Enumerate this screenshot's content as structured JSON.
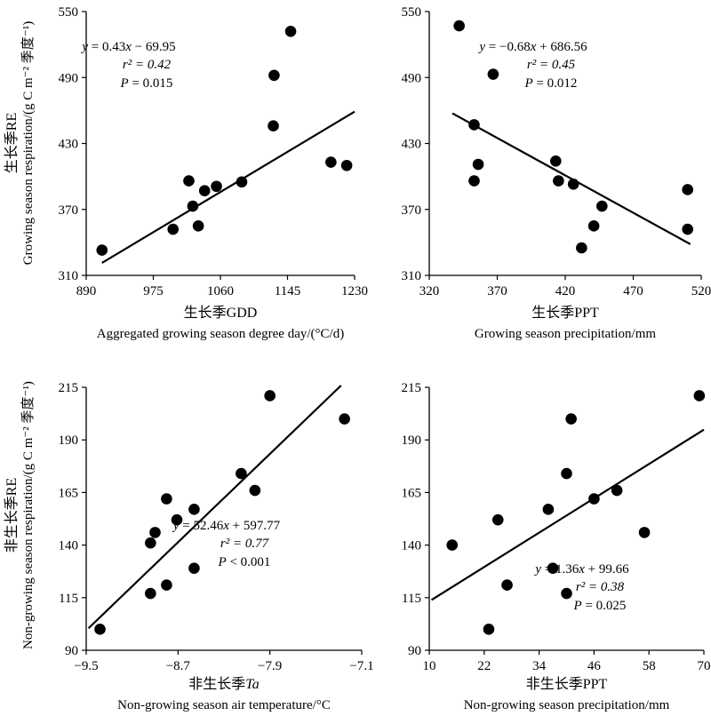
{
  "ylabels": {
    "top_cn": "生长季RE",
    "top_en": "Growing season respiration/(g C m⁻² 季度⁻¹)",
    "bottom_cn": "非生长季RE",
    "bottom_en": "Non-growing season respiration/(g C m⁻² 季度⁻¹)"
  },
  "chart_data": [
    {
      "type": "scatter",
      "xlabel_cn": "生长季GDD",
      "xlabel": "Aggregated growing season degree day/(°C/d)",
      "xlim": [
        890,
        1230
      ],
      "ylim": [
        310,
        550
      ],
      "xticks": [
        "890",
        "975",
        "1060",
        "1145",
        "1230"
      ],
      "yticks": [
        "310",
        "370",
        "430",
        "490",
        "550"
      ],
      "points": [
        [
          910,
          333
        ],
        [
          1000,
          352
        ],
        [
          1020,
          396
        ],
        [
          1025,
          373
        ],
        [
          1032,
          355
        ],
        [
          1040,
          387
        ],
        [
          1055,
          391
        ],
        [
          1087,
          395
        ],
        [
          1127,
          446
        ],
        [
          1128,
          492
        ],
        [
          1149,
          532
        ],
        [
          1200,
          413
        ],
        [
          1220,
          410
        ]
      ],
      "fit": {
        "slope": 0.43,
        "intercept": -69.95
      },
      "fit_range": [
        910,
        1230
      ],
      "annotation": {
        "line1_a": "y",
        "line1_b": " = 0.43",
        "line1_c": "x",
        "line1_d": " −  69.95",
        "r2": "r² = 0.42",
        "p_label": "P",
        "p_rest": " = 0.015"
      }
    },
    {
      "type": "scatter",
      "xlabel_cn": "生长季PPT",
      "xlabel": "Growing season precipitation/mm",
      "xlim": [
        320,
        520
      ],
      "ylim": [
        310,
        550
      ],
      "xticks": [
        "320",
        "370",
        "420",
        "470",
        "520"
      ],
      "yticks": [
        "310",
        "370",
        "430",
        "490",
        "550"
      ],
      "points": [
        [
          342,
          537
        ],
        [
          353,
          447
        ],
        [
          353,
          396
        ],
        [
          356,
          411
        ],
        [
          367,
          493
        ],
        [
          413,
          414
        ],
        [
          415,
          396
        ],
        [
          426,
          393
        ],
        [
          432,
          335
        ],
        [
          441,
          355
        ],
        [
          447,
          373
        ],
        [
          510,
          388
        ],
        [
          510,
          352
        ]
      ],
      "fit": {
        "slope": -0.68,
        "intercept": 686.56
      },
      "fit_range": [
        337,
        512
      ],
      "annotation": {
        "line1_a": "y",
        "line1_b": " = −0.68",
        "line1_c": "x",
        "line1_d": " + 686.56",
        "r2": "r² = 0.45",
        "p_label": "P",
        "p_rest": " = 0.012"
      }
    },
    {
      "type": "scatter",
      "xlabel_cn": "非生长季",
      "xlabel_cn_italic": "Ta",
      "xlabel": "Non-growing season air temperature/°C",
      "xlim": [
        -9.5,
        -7.1
      ],
      "ylim": [
        90,
        215
      ],
      "xticks": [
        "−9.5",
        "−8.7",
        "−7.9",
        "−7.1"
      ],
      "yticks": [
        "90",
        "115",
        "140",
        "165",
        "190",
        "215"
      ],
      "points": [
        [
          -9.38,
          100
        ],
        [
          -8.94,
          117
        ],
        [
          -8.94,
          141
        ],
        [
          -8.9,
          146
        ],
        [
          -8.8,
          121
        ],
        [
          -8.8,
          162
        ],
        [
          -8.71,
          152
        ],
        [
          -8.56,
          157
        ],
        [
          -8.56,
          129
        ],
        [
          -8.15,
          174
        ],
        [
          -8.03,
          166
        ],
        [
          -7.9,
          211
        ],
        [
          -7.25,
          200
        ]
      ],
      "fit": {
        "slope": 52.46,
        "intercept": 597.77
      },
      "fit_range": [
        -9.48,
        -7.28
      ],
      "annotation": {
        "line1_a": "y",
        "line1_b": " = 52.46",
        "line1_c": "x",
        "line1_d": " + 597.77",
        "r2": "r² = 0.77",
        "p_label": "P",
        "p_rest": " < 0.001"
      }
    },
    {
      "type": "scatter",
      "xlabel_cn": "非生长季PPT",
      "xlabel": "Non-growing season precipitation/mm",
      "xlim": [
        10,
        70
      ],
      "ylim": [
        90,
        215
      ],
      "xticks": [
        "10",
        "22",
        "34",
        "46",
        "58",
        "70"
      ],
      "yticks": [
        "90",
        "115",
        "140",
        "165",
        "190",
        "215"
      ],
      "points": [
        [
          15,
          140
        ],
        [
          23,
          100
        ],
        [
          25,
          152
        ],
        [
          27,
          121
        ],
        [
          36,
          157
        ],
        [
          37,
          129
        ],
        [
          40,
          174
        ],
        [
          40,
          117
        ],
        [
          41,
          200
        ],
        [
          46,
          162
        ],
        [
          51,
          166
        ],
        [
          57,
          146
        ],
        [
          69,
          211
        ]
      ],
      "fit": {
        "slope": 1.36,
        "intercept": 99.66
      },
      "fit_range": [
        10.5,
        70
      ],
      "annotation": {
        "line1_a": "y",
        "line1_b": " = 1.36",
        "line1_c": "x",
        "line1_d": " +  99.66",
        "r2": "r² = 0.38",
        "p_label": "P",
        "p_rest": " = 0.025"
      }
    }
  ]
}
